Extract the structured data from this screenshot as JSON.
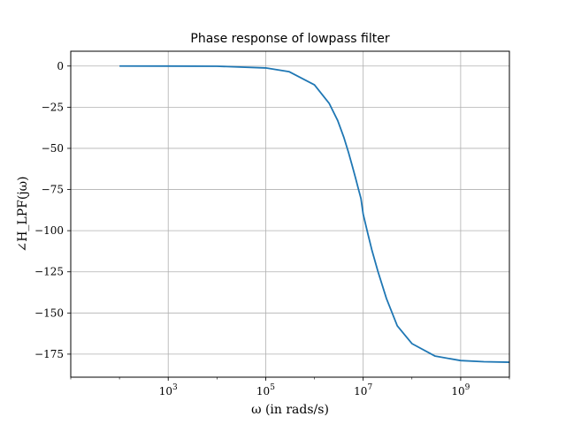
{
  "chart_data": {
    "type": "line",
    "title": "Phase response of lowpass filter",
    "xlabel": "ω (in rads/s)",
    "ylabel": "∠H_LPF(jω)",
    "x_scale": "log",
    "xlim": [
      10.0,
      10000000000.0
    ],
    "ylim": [
      -189,
      9
    ],
    "grid": true,
    "x_ticks": [
      {
        "value": 1000,
        "label_base": "10",
        "label_exp": "3"
      },
      {
        "value": 100000,
        "label_base": "10",
        "label_exp": "5"
      },
      {
        "value": 10000000,
        "label_base": "10",
        "label_exp": "7"
      },
      {
        "value": 1000000000,
        "label_base": "10",
        "label_exp": "9"
      }
    ],
    "y_ticks": [
      {
        "value": 0,
        "label": "0"
      },
      {
        "value": -25,
        "label": "−25"
      },
      {
        "value": -50,
        "label": "−50"
      },
      {
        "value": -75,
        "label": "−75"
      },
      {
        "value": -100,
        "label": "−100"
      },
      {
        "value": -125,
        "label": "−125"
      },
      {
        "value": -150,
        "label": "−150"
      },
      {
        "value": -175,
        "label": "−175"
      }
    ],
    "series": [
      {
        "color": "#1f77b4",
        "x": [
          100,
          1000,
          10000,
          100000,
          300000,
          1000000,
          2000000,
          3000000,
          4000000,
          5000000,
          6000000,
          7000000,
          8000000,
          9000000,
          10000000,
          11000000,
          12500000,
          15000000,
          20000000,
          30000000,
          50000000,
          100000000,
          300000000,
          1000000000,
          3000000000,
          10000000000
        ],
        "y": [
          0,
          -0.01,
          -0.11,
          -1.15,
          -3.4,
          -11.4,
          -22.6,
          -33.1,
          -43.2,
          -52.5,
          -60.9,
          -68.2,
          -74.8,
          -80.4,
          -90,
          -95.1,
          -102,
          -111.5,
          -124.6,
          -141.2,
          -157.8,
          -168.6,
          -176.2,
          -178.9,
          -179.6,
          -179.9
        ]
      }
    ]
  }
}
